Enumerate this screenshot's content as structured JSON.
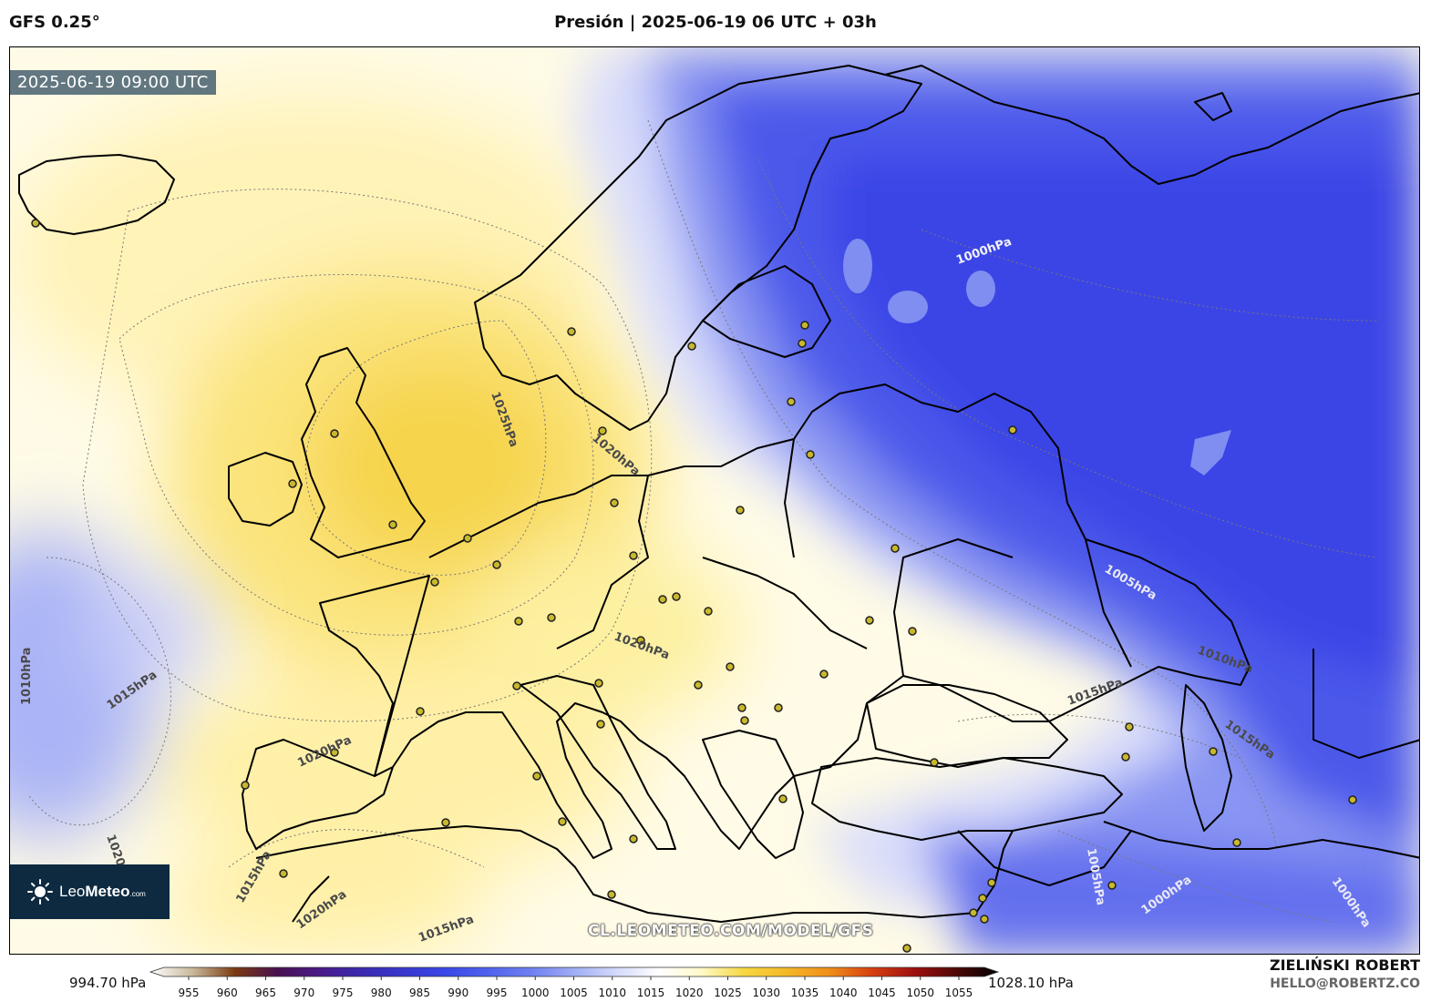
{
  "header": {
    "model": "GFS 0.25°",
    "title": "Presión | 2025-06-19 06 UTC + 03h"
  },
  "map": {
    "timestamp": "2025-06-19 09:00 UTC",
    "watermark": "CL.LEOMETEO.COM/MODEL/GFS",
    "logo": {
      "name_light": "Leo",
      "name_bold": "Meteo",
      "suffix": ".com"
    },
    "contour_labels": [
      "1025hPa",
      "1020hPa",
      "1020hPa",
      "1015hPa",
      "1010hPa",
      "1020hPa",
      "1015hPa",
      "1020hPa",
      "1015hPa",
      "1020hPa",
      "1000hPa",
      "1005hPa",
      "1010hPa",
      "1015hPa",
      "1015hPa",
      "1005hPa",
      "1000hPa",
      "1000hPa"
    ],
    "colors": {
      "high": "#f7d94c",
      "mid": "#fffbe2",
      "low": "#3f4be8"
    }
  },
  "colorbar": {
    "min_label": "994.70 hPa",
    "max_label": "1028.10 hPa",
    "ticks": [
      "955",
      "960",
      "965",
      "970",
      "975",
      "980",
      "985",
      "990",
      "995",
      "1000",
      "1005",
      "1010",
      "1015",
      "1020",
      "1025",
      "1030",
      "1035",
      "1040",
      "1045",
      "1050",
      "1055"
    ],
    "stops": [
      "#ffffff",
      "#c8b89a",
      "#7a3a10",
      "#4a1050",
      "#4a1a8a",
      "#3a2ab0",
      "#3838d0",
      "#3a48e8",
      "#4f63ee",
      "#7080f0",
      "#a0aef5",
      "#d4dafa",
      "#ffffff",
      "#fff9c8",
      "#f6d840",
      "#f5b828",
      "#f09018",
      "#d84010",
      "#a01010",
      "#500808",
      "#000000"
    ]
  },
  "footer": {
    "author": "ZIELIŃSKI ROBERT",
    "email": "HELLO@ROBERTZ.CO"
  }
}
